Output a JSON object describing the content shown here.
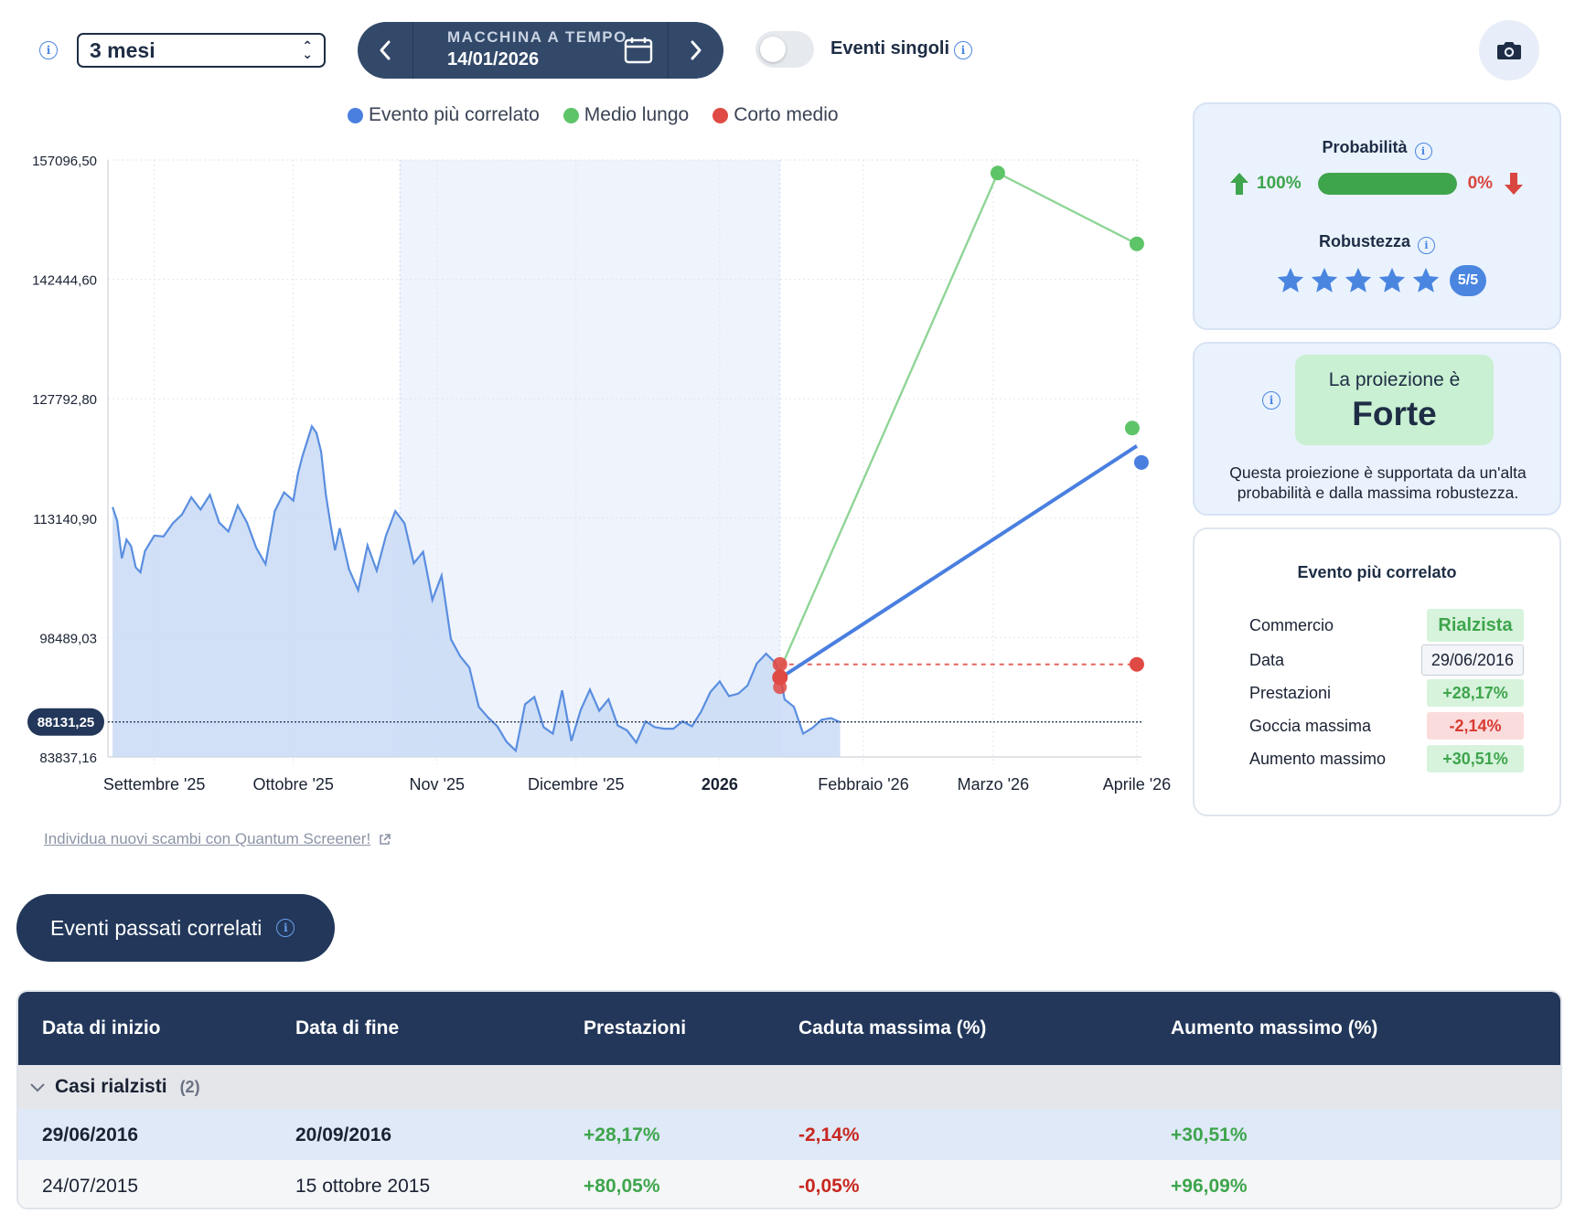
{
  "toolbar": {
    "period_value": "3 mesi",
    "time_machine_title": "MACCHINA A TEMPO",
    "time_machine_date": "14/01/2026",
    "single_events_label": "Eventi singoli",
    "single_events_on": false
  },
  "legend": [
    {
      "label": "Evento più correlato",
      "color": "#4a7fe0"
    },
    {
      "label": "Medio lungo",
      "color": "#5ec468"
    },
    {
      "label": "Corto medio",
      "color": "#e04a44"
    }
  ],
  "colors": {
    "blue": "#4a7fe0",
    "green": "#5ec468",
    "red": "#e04a44",
    "navy": "#22375a"
  },
  "chart_data": {
    "type": "area",
    "y_ticks": [
      "157096,50",
      "142444,60",
      "127792,80",
      "113140,90",
      "98489,03",
      "83837,16"
    ],
    "y_tick_values": [
      157096.5,
      142444.6,
      127792.8,
      113140.9,
      98489.03,
      83837.16
    ],
    "ylim": [
      83837.16,
      157096.5
    ],
    "x_ticks": [
      "Settembre '25",
      "Ottobre '25",
      "Nov '25",
      "Dicembre '25",
      "2026",
      "Febbraio '26",
      "Marzo '26",
      "Aprile '26"
    ],
    "x_tick_dates": [
      "2025-09-01",
      "2025-10-01",
      "2025-11-01",
      "2025-12-01",
      "2026-01-01",
      "2026-02-01",
      "2026-03-01",
      "2026-04-01"
    ],
    "current_price_label": "88131,25",
    "current_price": 88131.25,
    "highlight_range": [
      "2025-10-24",
      "2026-01-14"
    ],
    "series": [
      {
        "name": "price",
        "x": [
          "2025-08-23",
          "2025-08-24",
          "2025-08-25",
          "2025-08-26",
          "2025-08-27",
          "2025-08-28",
          "2025-08-29",
          "2025-08-30",
          "2025-09-01",
          "2025-09-03",
          "2025-09-05",
          "2025-09-07",
          "2025-09-09",
          "2025-09-11",
          "2025-09-13",
          "2025-09-15",
          "2025-09-17",
          "2025-09-19",
          "2025-09-21",
          "2025-09-23",
          "2025-09-25",
          "2025-09-27",
          "2025-09-29",
          "2025-10-01",
          "2025-10-02",
          "2025-10-03",
          "2025-10-04",
          "2025-10-05",
          "2025-10-06",
          "2025-10-07",
          "2025-10-08",
          "2025-10-09",
          "2025-10-10",
          "2025-10-11",
          "2025-10-13",
          "2025-10-15",
          "2025-10-17",
          "2025-10-19",
          "2025-10-21",
          "2025-10-23",
          "2025-10-25",
          "2025-10-27",
          "2025-10-29",
          "2025-10-31",
          "2025-11-02",
          "2025-11-04",
          "2025-11-06",
          "2025-11-08",
          "2025-11-10",
          "2025-11-12",
          "2025-11-14",
          "2025-11-16",
          "2025-11-18",
          "2025-11-20",
          "2025-11-22",
          "2025-11-24",
          "2025-11-26",
          "2025-11-28",
          "2025-11-30",
          "2025-12-02",
          "2025-12-04",
          "2025-12-06",
          "2025-12-08",
          "2025-12-10",
          "2025-12-12",
          "2025-12-14",
          "2025-12-16",
          "2025-12-18",
          "2025-12-20",
          "2025-12-22",
          "2025-12-24",
          "2025-12-26",
          "2025-12-28",
          "2025-12-30",
          "2026-01-01",
          "2026-01-03",
          "2026-01-05",
          "2026-01-07",
          "2026-01-09",
          "2026-01-11",
          "2026-01-13",
          "2026-01-14",
          "2026-01-15",
          "2026-01-17",
          "2026-01-19",
          "2026-01-21",
          "2026-01-23",
          "2026-01-25",
          "2026-01-27"
        ],
        "y": [
          114500,
          112800,
          108200,
          110500,
          109700,
          107100,
          106500,
          109100,
          111000,
          110900,
          112500,
          113600,
          115700,
          114200,
          116000,
          112600,
          111500,
          114700,
          112600,
          109500,
          107500,
          114000,
          116300,
          115300,
          118600,
          120800,
          122600,
          124400,
          123600,
          121300,
          116100,
          112500,
          109200,
          111900,
          106900,
          104300,
          109800,
          106700,
          111000,
          114000,
          112500,
          107600,
          109000,
          103100,
          106100,
          98300,
          96200,
          94800,
          90000,
          88700,
          87600,
          85700,
          84600,
          90300,
          91200,
          87500,
          86700,
          92000,
          85800,
          89600,
          92100,
          89500,
          90900,
          87700,
          87100,
          85600,
          88200,
          87500,
          87300,
          87300,
          88200,
          87600,
          89400,
          91800,
          93100,
          91300,
          91600,
          92600,
          95300,
          96500,
          95400,
          94100,
          90900,
          90000,
          86700,
          87400,
          88400,
          88600,
          88100
        ]
      },
      {
        "name": "Evento più correlato",
        "x": [
          "2026-01-14",
          "2026-04-01"
        ],
        "y": [
          93500,
          122000
        ]
      },
      {
        "name": "Medio lungo",
        "x": [
          "2026-01-14",
          "2026-03-02",
          "2026-04-01"
        ],
        "y": [
          94500,
          155500,
          146800
        ]
      },
      {
        "name": "Corto medio",
        "x": [
          "2026-01-14",
          "2026-04-01"
        ],
        "y": [
          95200,
          95200
        ]
      }
    ]
  },
  "screener_link": "Individua nuovi scambi con Quantum Screener!",
  "probability": {
    "title": "Probabilità",
    "up_pct": "100%",
    "down_pct": "0%",
    "up_value": 1.0
  },
  "robustness": {
    "title": "Robustezza",
    "stars": 5,
    "max": 5,
    "badge": "5/5"
  },
  "projection": {
    "subtitle": "La proiezione è",
    "strength": "Forte",
    "description": "Questa proiezione è supportata da un'alta probabilità e dalla massima robustezza."
  },
  "correlated_event": {
    "title": "Evento più correlato",
    "rows": [
      {
        "label": "Commercio",
        "value": "Rialzista",
        "tone": "green"
      },
      {
        "label": "Data",
        "value": "29/06/2016",
        "tone": "plain"
      },
      {
        "label": "Prestazioni",
        "value": "+28,17%",
        "tone": "green"
      },
      {
        "label": "Goccia massima",
        "value": "-2,14%",
        "tone": "red"
      },
      {
        "label": "Aumento massimo",
        "value": "+30,51%",
        "tone": "green"
      }
    ]
  },
  "past_events": {
    "button_label": "Eventi passati correlati",
    "columns": [
      "Data di inizio",
      "Data di fine",
      "Prestazioni",
      "Caduta massima (%)",
      "Aumento massimo (%)"
    ],
    "group_label": "Casi rialzisti",
    "group_count": "(2)",
    "rows": [
      {
        "start": "29/06/2016",
        "end": "20/09/2016",
        "performance": "+28,17%",
        "max_drop": "-2,14%",
        "max_rise": "+30,51%"
      },
      {
        "start": "24/07/2015",
        "end": "15 ottobre 2015",
        "performance": "+80,05%",
        "max_drop": "-0,05%",
        "max_rise": "+96,09%"
      }
    ]
  }
}
